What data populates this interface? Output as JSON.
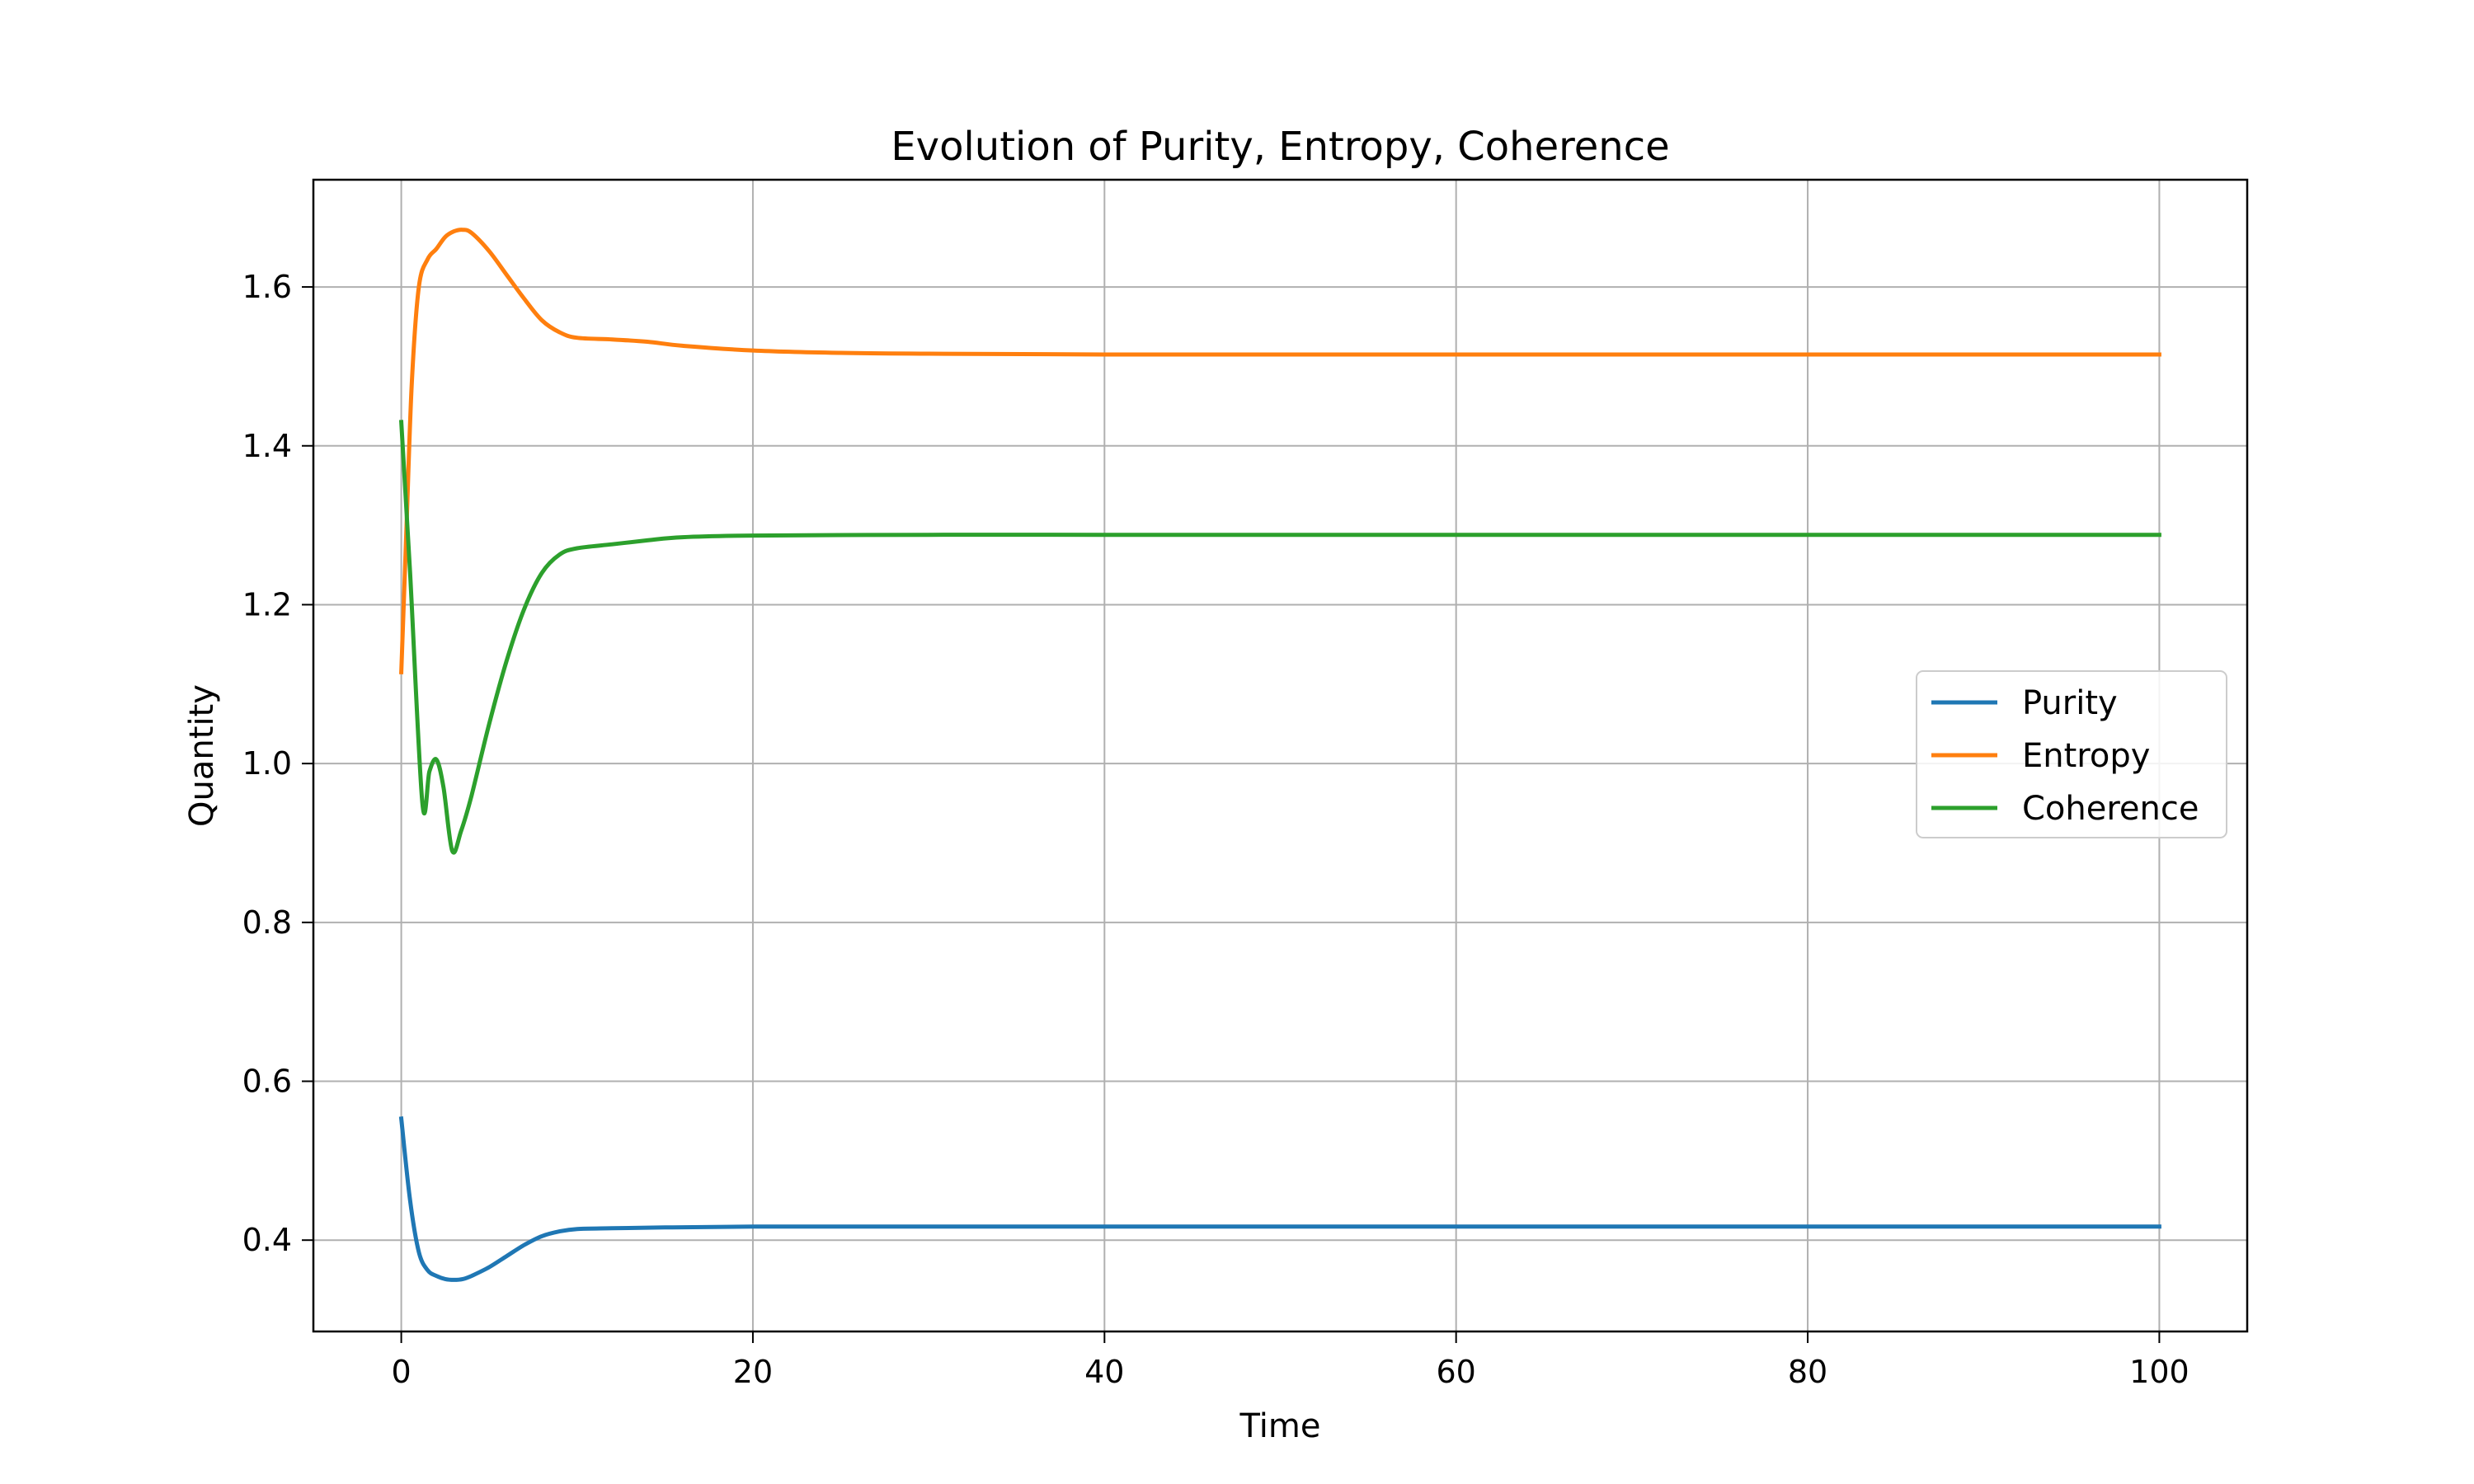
{
  "chart_data": {
    "type": "line",
    "title": "Evolution of Purity, Entropy, Coherence",
    "xlabel": "Time",
    "ylabel": "Quantity",
    "xlim": [
      -5,
      105
    ],
    "ylim": [
      0.285,
      1.735
    ],
    "xticks": [
      0,
      20,
      40,
      60,
      80,
      100
    ],
    "yticks": [
      0.4,
      0.6,
      0.8,
      1.0,
      1.2,
      1.4,
      1.6
    ],
    "xtick_labels": [
      "0",
      "20",
      "40",
      "60",
      "80",
      "100"
    ],
    "ytick_labels": [
      "0.4",
      "0.6",
      "0.8",
      "1.0",
      "1.2",
      "1.4",
      "1.6"
    ],
    "grid": true,
    "legend_position": "center-right",
    "series": [
      {
        "name": "Purity",
        "color": "#1f77b4",
        "points": [
          [
            0,
            0.553
          ],
          [
            0.5,
            0.45
          ],
          [
            1,
            0.385
          ],
          [
            1.5,
            0.362
          ],
          [
            2,
            0.355
          ],
          [
            2.5,
            0.351
          ],
          [
            3,
            0.35
          ],
          [
            3.5,
            0.351
          ],
          [
            4,
            0.355
          ],
          [
            5,
            0.366
          ],
          [
            6,
            0.38
          ],
          [
            7,
            0.394
          ],
          [
            8,
            0.405
          ],
          [
            9,
            0.411
          ],
          [
            10,
            0.414
          ],
          [
            12,
            0.415
          ],
          [
            15,
            0.416
          ],
          [
            20,
            0.417
          ],
          [
            30,
            0.417
          ],
          [
            50,
            0.417
          ],
          [
            70,
            0.417
          ],
          [
            100,
            0.417
          ]
        ]
      },
      {
        "name": "Entropy",
        "color": "#ff7f0e",
        "points": [
          [
            0,
            1.115
          ],
          [
            0.3,
            1.3
          ],
          [
            0.6,
            1.48
          ],
          [
            1,
            1.6
          ],
          [
            1.5,
            1.635
          ],
          [
            2,
            1.648
          ],
          [
            2.5,
            1.663
          ],
          [
            3,
            1.67
          ],
          [
            3.5,
            1.672
          ],
          [
            4,
            1.668
          ],
          [
            5,
            1.645
          ],
          [
            6,
            1.615
          ],
          [
            7,
            1.585
          ],
          [
            8,
            1.558
          ],
          [
            9,
            1.543
          ],
          [
            10,
            1.536
          ],
          [
            12,
            1.534
          ],
          [
            14,
            1.531
          ],
          [
            16,
            1.526
          ],
          [
            20,
            1.52
          ],
          [
            25,
            1.517
          ],
          [
            30,
            1.516
          ],
          [
            40,
            1.515
          ],
          [
            60,
            1.515
          ],
          [
            100,
            1.515
          ]
        ]
      },
      {
        "name": "Coherence",
        "color": "#2ca02c",
        "points": [
          [
            0,
            1.43
          ],
          [
            0.5,
            1.24
          ],
          [
            1.2,
            0.95
          ],
          [
            1.6,
            0.99
          ],
          [
            2,
            1.005
          ],
          [
            2.4,
            0.97
          ],
          [
            2.9,
            0.89
          ],
          [
            3.4,
            0.915
          ],
          [
            4,
            0.96
          ],
          [
            5,
            1.05
          ],
          [
            6,
            1.13
          ],
          [
            7,
            1.195
          ],
          [
            8,
            1.24
          ],
          [
            9,
            1.263
          ],
          [
            10,
            1.271
          ],
          [
            12,
            1.276
          ],
          [
            14,
            1.281
          ],
          [
            16,
            1.285
          ],
          [
            20,
            1.287
          ],
          [
            30,
            1.288
          ],
          [
            40,
            1.288
          ],
          [
            60,
            1.288
          ],
          [
            100,
            1.288
          ]
        ]
      }
    ]
  }
}
